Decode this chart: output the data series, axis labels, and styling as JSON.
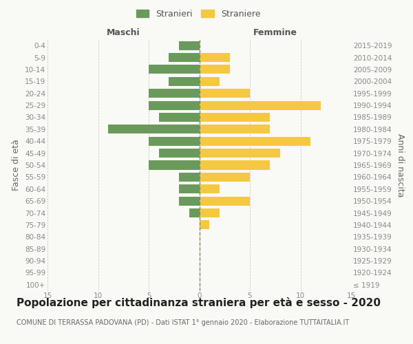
{
  "age_groups": [
    "100+",
    "95-99",
    "90-94",
    "85-89",
    "80-84",
    "75-79",
    "70-74",
    "65-69",
    "60-64",
    "55-59",
    "50-54",
    "45-49",
    "40-44",
    "35-39",
    "30-34",
    "25-29",
    "20-24",
    "15-19",
    "10-14",
    "5-9",
    "0-4"
  ],
  "birth_years": [
    "≤ 1919",
    "1920-1924",
    "1925-1929",
    "1930-1934",
    "1935-1939",
    "1940-1944",
    "1945-1949",
    "1950-1954",
    "1955-1959",
    "1960-1964",
    "1965-1969",
    "1970-1974",
    "1975-1979",
    "1980-1984",
    "1985-1989",
    "1990-1994",
    "1995-1999",
    "2000-2004",
    "2005-2009",
    "2010-2014",
    "2015-2019"
  ],
  "males": [
    0,
    0,
    0,
    0,
    0,
    0,
    1,
    2,
    2,
    2,
    5,
    4,
    5,
    9,
    4,
    5,
    5,
    3,
    5,
    3,
    2
  ],
  "females": [
    0,
    0,
    0,
    0,
    0,
    1,
    2,
    5,
    2,
    5,
    7,
    8,
    11,
    7,
    7,
    12,
    5,
    2,
    3,
    3,
    0
  ],
  "male_color": "#6a9a5b",
  "female_color": "#f5c842",
  "background_color": "#f9f9f6",
  "grid_color": "#cccccc",
  "center_line_color": "#888866",
  "title": "Popolazione per cittadinanza straniera per età e sesso - 2020",
  "subtitle": "COMUNE DI TERRASSA PADOVANA (PD) - Dati ISTAT 1° gennaio 2020 - Elaborazione TUTTAITALIA.IT",
  "xlabel_left": "Maschi",
  "xlabel_right": "Femmine",
  "ylabel_left": "Fasce di età",
  "ylabel_right": "Anni di nascita",
  "legend_male": "Stranieri",
  "legend_female": "Straniere",
  "xlim": 15,
  "bar_height": 0.75,
  "title_fontsize": 11,
  "subtitle_fontsize": 7,
  "tick_fontsize": 7.5,
  "label_fontsize": 9,
  "legend_fontsize": 9
}
